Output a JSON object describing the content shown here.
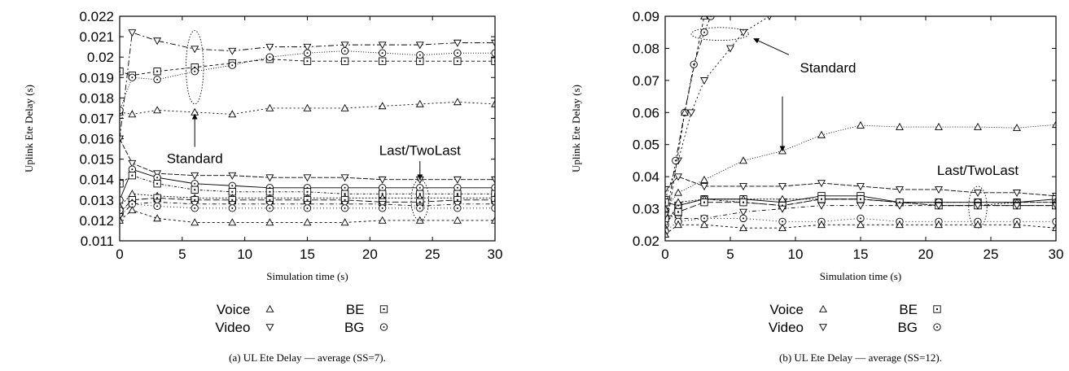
{
  "chart_data": [
    {
      "type": "line",
      "caption": "(a) UL Ete Delay — average (SS=7).",
      "xlabel": "Simulation time (s)",
      "ylabel": "Uplink Ete Delay (s)",
      "xlim": [
        0,
        30
      ],
      "ylim": [
        0.011,
        0.022
      ],
      "xticks": [
        0,
        5,
        10,
        15,
        20,
        25,
        30
      ],
      "yticks": [
        0.011,
        0.012,
        0.013,
        0.014,
        0.015,
        0.016,
        0.017,
        0.018,
        0.019,
        0.02,
        0.021,
        0.022
      ],
      "ytick_labels": [
        "0.011",
        "0.012",
        "0.013",
        "0.014",
        "0.015",
        "0.016",
        "0.017",
        "0.018",
        "0.019",
        "0.02",
        "0.021",
        "0.022"
      ],
      "legend": {
        "placement": "bottom",
        "entries": [
          {
            "label": "Voice",
            "marker": "triangle-up"
          },
          {
            "label": "BE",
            "marker": "square"
          },
          {
            "label": "Video",
            "marker": "triangle-down"
          },
          {
            "label": "BG",
            "marker": "circle"
          }
        ]
      },
      "series": [
        {
          "marker": "triangle-up",
          "x": [
            0,
            1,
            3,
            6,
            9,
            12,
            15,
            18,
            21,
            24,
            27,
            30
          ],
          "y": [
            0.0173,
            0.0172,
            0.0174,
            0.0173,
            0.0172,
            0.0175,
            0.0175,
            0.0175,
            0.0176,
            0.0177,
            0.0178,
            0.0177
          ]
        },
        {
          "marker": "triangle-down",
          "x": [
            0,
            1,
            3,
            6,
            9,
            12,
            15,
            18,
            21,
            24,
            27,
            30
          ],
          "y": [
            0.016,
            0.0212,
            0.0208,
            0.0204,
            0.0203,
            0.0205,
            0.0205,
            0.0206,
            0.0206,
            0.0206,
            0.0207,
            0.0207
          ]
        },
        {
          "marker": "square",
          "x": [
            0,
            1,
            3,
            6,
            9,
            12,
            15,
            18,
            21,
            24,
            27,
            30
          ],
          "y": [
            0.0193,
            0.0191,
            0.0193,
            0.0195,
            0.0197,
            0.0199,
            0.0198,
            0.0198,
            0.0198,
            0.0198,
            0.0198,
            0.0198
          ]
        },
        {
          "marker": "circle",
          "x": [
            0,
            1,
            3,
            6,
            9,
            12,
            15,
            18,
            21,
            24,
            27,
            30
          ],
          "y": [
            0.0174,
            0.019,
            0.0189,
            0.0193,
            0.0196,
            0.02,
            0.0202,
            0.0203,
            0.0202,
            0.0201,
            0.0202,
            0.0202
          ]
        },
        {
          "marker": "triangle-down",
          "x": [
            0,
            1,
            3,
            6,
            9,
            12,
            15,
            18,
            21,
            24,
            27,
            30
          ],
          "y": [
            0.016,
            0.0148,
            0.0143,
            0.0142,
            0.0142,
            0.0141,
            0.0141,
            0.0141,
            0.014,
            0.014,
            0.014,
            0.014
          ]
        },
        {
          "marker": "circle",
          "x": [
            0,
            1,
            3,
            6,
            9,
            12,
            15,
            18,
            21,
            24,
            27,
            30
          ],
          "y": [
            0.013,
            0.0145,
            0.0141,
            0.0138,
            0.0137,
            0.0136,
            0.0136,
            0.0136,
            0.0136,
            0.0136,
            0.0136,
            0.0136
          ]
        },
        {
          "marker": "square",
          "x": [
            0,
            1,
            3,
            6,
            9,
            12,
            15,
            18,
            21,
            24,
            27,
            30
          ],
          "y": [
            0.0138,
            0.0142,
            0.0138,
            0.0135,
            0.0134,
            0.0134,
            0.0134,
            0.0133,
            0.0133,
            0.0133,
            0.0133,
            0.0133
          ]
        },
        {
          "marker": "triangle-up",
          "x": [
            0,
            1,
            3,
            6,
            9,
            12,
            15,
            18,
            21,
            24,
            27,
            30
          ],
          "y": [
            0.0127,
            0.0133,
            0.0132,
            0.0131,
            0.0131,
            0.0131,
            0.0131,
            0.0131,
            0.0131,
            0.0131,
            0.0131,
            0.0131
          ]
        },
        {
          "marker": "square",
          "x": [
            0,
            1,
            3,
            6,
            9,
            12,
            15,
            18,
            21,
            24,
            27,
            30
          ],
          "y": [
            0.0124,
            0.013,
            0.0131,
            0.013,
            0.013,
            0.013,
            0.013,
            0.013,
            0.0129,
            0.0129,
            0.013,
            0.013
          ]
        },
        {
          "marker": "triangle-down",
          "x": [
            0,
            1,
            3,
            6,
            9,
            12,
            15,
            18,
            21,
            24,
            27,
            30
          ],
          "y": [
            0.0122,
            0.0128,
            0.0129,
            0.0128,
            0.0128,
            0.0128,
            0.0128,
            0.0128,
            0.0128,
            0.0127,
            0.0128,
            0.0128
          ]
        },
        {
          "marker": "circle",
          "x": [
            0,
            1,
            3,
            6,
            9,
            12,
            15,
            18,
            21,
            24,
            27,
            30
          ],
          "y": [
            0.0125,
            0.0128,
            0.0127,
            0.0126,
            0.0126,
            0.0126,
            0.0126,
            0.0126,
            0.0126,
            0.0126,
            0.0126,
            0.0126
          ]
        },
        {
          "marker": "triangle-up",
          "x": [
            0,
            1,
            3,
            6,
            9,
            12,
            15,
            18,
            21,
            24,
            27,
            30
          ],
          "y": [
            0.012,
            0.0125,
            0.0121,
            0.0119,
            0.0119,
            0.0119,
            0.0119,
            0.0119,
            0.012,
            0.012,
            0.012,
            0.012
          ]
        }
      ],
      "annotations": [
        {
          "text": "Standard",
          "ellipse_center": [
            6,
            0.0195
          ],
          "ellipse_radius": [
            0.7,
            0.0018
          ],
          "text_at": [
            6,
            0.0148
          ],
          "arrow_from": [
            6,
            0.0156
          ],
          "arrow_to": [
            6,
            0.0172
          ]
        },
        {
          "text": "Last/TwoLast",
          "ellipse_center": [
            24,
            0.013
          ],
          "ellipse_radius": [
            0.7,
            0.001
          ],
          "text_at": [
            24,
            0.0152
          ],
          "arrow_from": [
            24,
            0.0149
          ],
          "arrow_to": [
            24,
            0.014
          ]
        }
      ]
    },
    {
      "type": "line",
      "caption": "(b) UL Ete Delay — average (SS=12).",
      "xlabel": "Simulation time (s)",
      "ylabel": "Uplink Ete Delay (s)",
      "xlim": [
        0,
        30
      ],
      "ylim": [
        0.02,
        0.09
      ],
      "xticks": [
        0,
        5,
        10,
        15,
        20,
        25,
        30
      ],
      "yticks": [
        0.02,
        0.03,
        0.04,
        0.05,
        0.06,
        0.07,
        0.08,
        0.09
      ],
      "ytick_labels": [
        "0.02",
        "0.03",
        "0.04",
        "0.05",
        "0.06",
        "0.07",
        "0.08",
        "0.09"
      ],
      "legend": {
        "placement": "bottom",
        "entries": [
          {
            "label": "Voice",
            "marker": "triangle-up"
          },
          {
            "label": "BE",
            "marker": "square"
          },
          {
            "label": "Video",
            "marker": "triangle-down"
          },
          {
            "label": "BG",
            "marker": "circle"
          }
        ]
      },
      "series": [
        {
          "marker": "triangle-down",
          "x": [
            0,
            1,
            2,
            3,
            5,
            6,
            8
          ],
          "y": [
            0.033,
            0.045,
            0.06,
            0.07,
            0.08,
            0.085,
            0.09
          ]
        },
        {
          "marker": "circle",
          "x": [
            0,
            0.8,
            1.5,
            2.2,
            3,
            3.5
          ],
          "y": [
            0.025,
            0.045,
            0.06,
            0.075,
            0.085,
            0.09
          ]
        },
        {
          "marker": "triangle-up",
          "x": [
            0,
            1.5,
            3
          ],
          "y": [
            0.022,
            0.06,
            0.09
          ]
        },
        {
          "marker": "triangle-up",
          "x": [
            0,
            1,
            3,
            6,
            9,
            12,
            15,
            18,
            21,
            24,
            27,
            30
          ],
          "y": [
            0.03,
            0.035,
            0.039,
            0.045,
            0.048,
            0.053,
            0.056,
            0.0555,
            0.0555,
            0.0555,
            0.0552,
            0.0562
          ]
        },
        {
          "marker": "triangle-down",
          "x": [
            0,
            1,
            3,
            6,
            9,
            12,
            15,
            18,
            21,
            24,
            27,
            30
          ],
          "y": [
            0.036,
            0.04,
            0.037,
            0.037,
            0.037,
            0.038,
            0.037,
            0.036,
            0.036,
            0.035,
            0.035,
            0.034
          ]
        },
        {
          "marker": "square",
          "x": [
            0,
            1,
            3,
            6,
            9,
            12,
            15,
            18,
            21,
            24,
            27,
            30
          ],
          "y": [
            0.032,
            0.031,
            0.033,
            0.033,
            0.032,
            0.034,
            0.034,
            0.032,
            0.032,
            0.032,
            0.032,
            0.033
          ]
        },
        {
          "marker": "circle",
          "x": [
            0,
            1,
            3,
            6,
            9,
            12,
            15,
            18,
            21,
            24,
            27,
            30
          ],
          "y": [
            0.025,
            0.031,
            0.033,
            0.032,
            0.031,
            0.033,
            0.033,
            0.032,
            0.032,
            0.032,
            0.032,
            0.032
          ]
        },
        {
          "marker": "triangle-up",
          "x": [
            0,
            1,
            3,
            6,
            9,
            12,
            15,
            18,
            21,
            24,
            27,
            30
          ],
          "y": [
            0.024,
            0.032,
            0.033,
            0.033,
            0.033,
            0.033,
            0.033,
            0.032,
            0.031,
            0.031,
            0.032,
            0.032
          ]
        },
        {
          "marker": "square",
          "x": [
            0,
            1,
            3,
            6,
            9,
            12,
            15,
            18,
            21,
            24,
            27,
            30
          ],
          "y": [
            0.027,
            0.029,
            0.032,
            0.032,
            0.031,
            0.033,
            0.033,
            0.032,
            0.031,
            0.031,
            0.031,
            0.031
          ]
        },
        {
          "marker": "triangle-down",
          "x": [
            0,
            1,
            3,
            6,
            9,
            12,
            15,
            18,
            21,
            24,
            27,
            30
          ],
          "y": [
            0.028,
            0.027,
            0.027,
            0.029,
            0.03,
            0.031,
            0.031,
            0.031,
            0.031,
            0.031,
            0.031,
            0.031
          ]
        },
        {
          "marker": "circle",
          "x": [
            0,
            1,
            3,
            6,
            9,
            12,
            15,
            18,
            21,
            24,
            27,
            30
          ],
          "y": [
            0.023,
            0.026,
            0.027,
            0.027,
            0.026,
            0.026,
            0.027,
            0.026,
            0.026,
            0.026,
            0.026,
            0.026
          ]
        },
        {
          "marker": "triangle-up",
          "x": [
            0,
            1,
            3,
            6,
            9,
            12,
            15,
            18,
            21,
            24,
            27,
            30
          ],
          "y": [
            0.022,
            0.025,
            0.025,
            0.024,
            0.024,
            0.025,
            0.025,
            0.025,
            0.025,
            0.025,
            0.025,
            0.024
          ]
        }
      ],
      "annotations": [
        {
          "text": "Standard",
          "ellipse_center": [
            4.2,
            0.0845
          ],
          "ellipse_radius": [
            2.2,
            0.002
          ],
          "text_at": [
            12.5,
            0.0725
          ],
          "arrow_from": [
            9.5,
            0.078
          ],
          "arrow_to": [
            6.8,
            0.083
          ]
        },
        {
          "text": "Standard",
          "draw_text": false,
          "arrow_from": [
            9,
            0.065
          ],
          "arrow_to": [
            9,
            0.048
          ]
        },
        {
          "text": "Last/TwoLast",
          "ellipse_center": [
            24,
            0.0305
          ],
          "ellipse_radius": [
            0.7,
            0.0065
          ],
          "text_at": [
            24,
            0.0405
          ],
          "arrow_from": null,
          "arrow_to": null
        }
      ]
    }
  ]
}
